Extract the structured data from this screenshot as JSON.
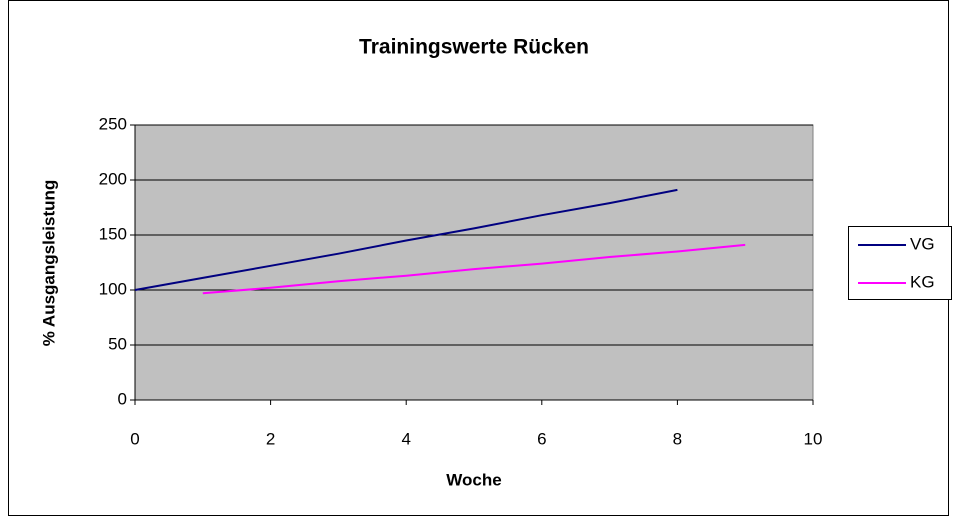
{
  "chart_data": {
    "type": "line",
    "title": "Trainingswerte Rücken",
    "x_label": "Woche",
    "y_label": "% Ausgangsleistung",
    "xlim": [
      0,
      10
    ],
    "xticks": [
      0,
      2,
      4,
      6,
      8,
      10
    ],
    "ylim": [
      0,
      250
    ],
    "yticks": [
      0,
      50,
      100,
      150,
      200,
      250
    ],
    "grid": true,
    "legend": "right",
    "series": [
      {
        "name": "VG",
        "color": "#000080",
        "x": [
          0,
          1,
          2,
          3,
          4,
          5,
          6,
          7,
          8
        ],
        "values": [
          100,
          111,
          122,
          133,
          145,
          156,
          168,
          179,
          191
        ]
      },
      {
        "name": "KG",
        "color": "#ff00ff",
        "x": [
          1,
          2,
          3,
          4,
          5,
          6,
          7,
          8,
          9
        ],
        "values": [
          97,
          102,
          108,
          113,
          119,
          124,
          130,
          135,
          141
        ]
      }
    ]
  }
}
